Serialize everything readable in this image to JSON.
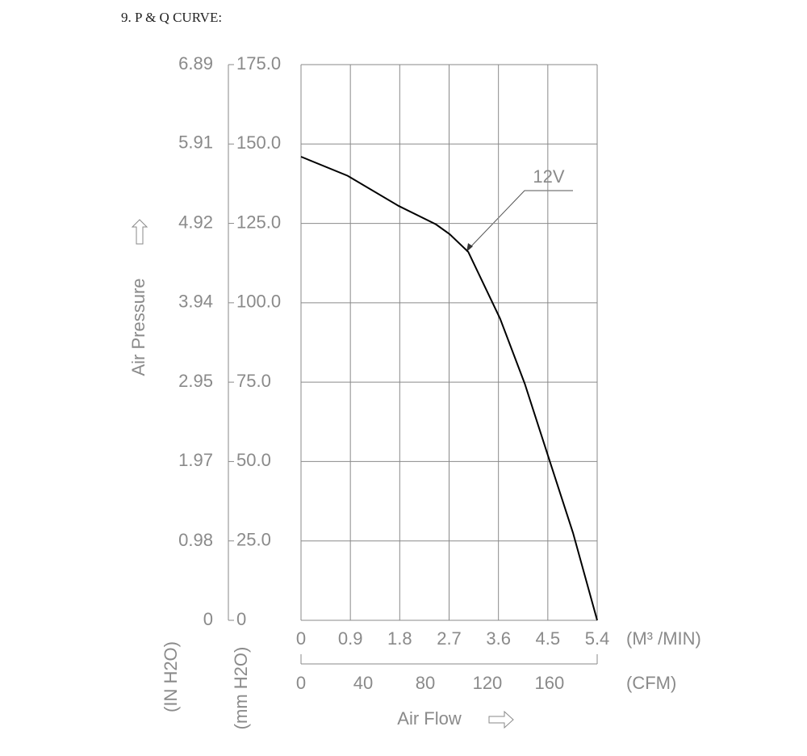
{
  "chart_data": {
    "type": "line",
    "title": "9. P & Q CURVE:",
    "x_label": "Air Flow",
    "y_label": "Air Pressure",
    "x_unit": "(M³ /MIN)",
    "x2_unit": "(CFM)",
    "y_unit": "(mm H2O)",
    "y2_unit": "(IN H2O)",
    "x": [
      0,
      0.85,
      1.78,
      2.46,
      2.71,
      3.05,
      3.63,
      4.08,
      4.53,
      4.96,
      5.4
    ],
    "series": [
      {
        "name": "12V",
        "color": "#000000",
        "values": [
          146,
          140,
          130.5,
          124.7,
          121.6,
          116,
          95,
          74.5,
          50.4,
          27.5,
          0
        ]
      }
    ],
    "xlim": [
      0,
      5.4
    ],
    "xticks": [
      0,
      0.9,
      1.8,
      2.7,
      3.6,
      4.5,
      5.4
    ],
    "x2lim": [
      0,
      190.7
    ],
    "x2ticks": [
      0,
      40,
      80,
      120,
      160
    ],
    "ylim": [
      0,
      175
    ],
    "yticks": [
      0,
      {
        "value": 25,
        "label": "25.0"
      },
      {
        "value": 50,
        "label": "50.0"
      },
      {
        "value": 75,
        "label": "75.0"
      },
      {
        "value": 100,
        "label": "100.0"
      },
      {
        "value": 125,
        "label": "125.0"
      },
      {
        "value": 150,
        "label": "150.0"
      },
      {
        "value": 175,
        "label": "175.0"
      }
    ],
    "y2lim": [
      0,
      6.89
    ],
    "y2ticks": [
      0,
      0.98,
      1.97,
      2.95,
      3.94,
      4.92,
      5.91,
      6.89
    ],
    "grid": true
  }
}
